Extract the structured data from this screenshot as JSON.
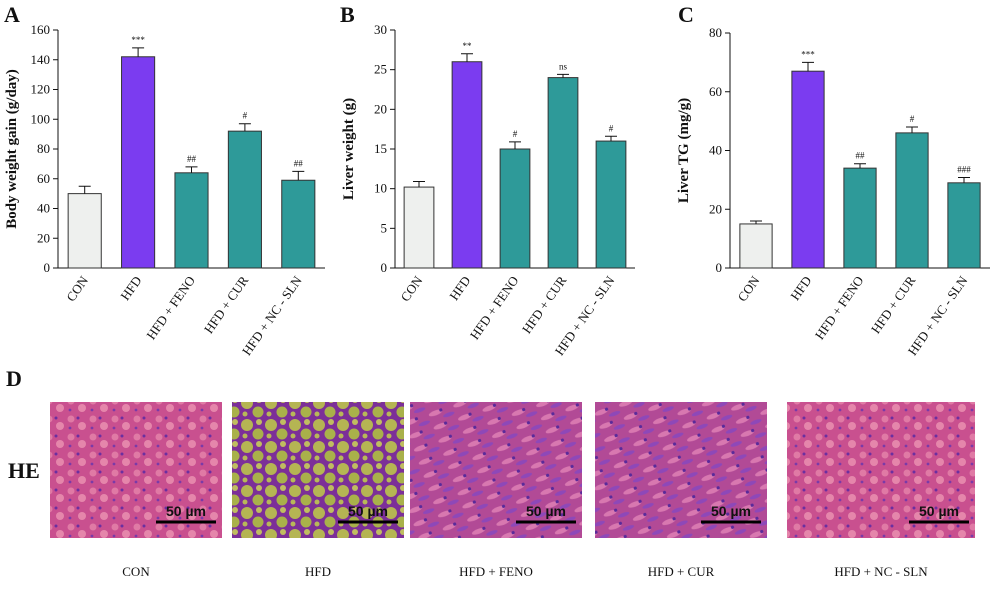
{
  "chart_data": [
    {
      "type": "bar",
      "label": "A",
      "ylabel": "Body weight gain (g/day)",
      "categories": [
        "CON",
        "HFD",
        "HFD + FENO",
        "HFD + CUR",
        "HFD + NC - SLN"
      ],
      "values": [
        50,
        142,
        64,
        92,
        59
      ],
      "errors": [
        5,
        6,
        4,
        5,
        6
      ],
      "annotations": [
        null,
        "***",
        "##",
        "#",
        "##"
      ],
      "colors": [
        "#eef0ee",
        "#7b3cf0",
        "#2e9a99",
        "#2e9a99",
        "#2e9a99"
      ],
      "ylim": [
        0,
        160
      ],
      "yticks": [
        0,
        20,
        40,
        60,
        80,
        100,
        120,
        140,
        160
      ]
    },
    {
      "type": "bar",
      "label": "B",
      "ylabel": "Liver weight (g)",
      "categories": [
        "CON",
        "HFD",
        "HFD + FENO",
        "HFD + CUR",
        "HFD + NC - SLN"
      ],
      "values": [
        10.2,
        26,
        15,
        24,
        16
      ],
      "errors": [
        0.7,
        1,
        0.9,
        0.4,
        0.6
      ],
      "annotations": [
        null,
        "**",
        "#",
        "ns",
        "#"
      ],
      "colors": [
        "#eef0ee",
        "#7b3cf0",
        "#2e9a99",
        "#2e9a99",
        "#2e9a99"
      ],
      "ylim": [
        0,
        30
      ],
      "yticks": [
        0,
        5,
        10,
        15,
        20,
        25,
        30
      ]
    },
    {
      "type": "bar",
      "label": "C",
      "ylabel": "Liver TG (mg/g)",
      "categories": [
        "CON",
        "HFD",
        "HFD + FENO",
        "HFD + CUR",
        "HFD + NC - SLN"
      ],
      "values": [
        15,
        67,
        34,
        46,
        29
      ],
      "errors": [
        1,
        3,
        1.5,
        2,
        1.8
      ],
      "annotations": [
        null,
        "***",
        "##",
        "#",
        "###"
      ],
      "colors": [
        "#eef0ee",
        "#7b3cf0",
        "#2e9a99",
        "#2e9a99",
        "#2e9a99"
      ],
      "ylim": [
        0,
        80
      ],
      "yticks": [
        0,
        20,
        40,
        60,
        80
      ]
    }
  ],
  "panel_d": {
    "label": "D",
    "row_label": "HE",
    "scale_bar": "50 µm",
    "captions": [
      "CON",
      "HFD",
      "HFD + FENO",
      "HFD + CUR",
      "HFD + NC - SLN"
    ]
  }
}
